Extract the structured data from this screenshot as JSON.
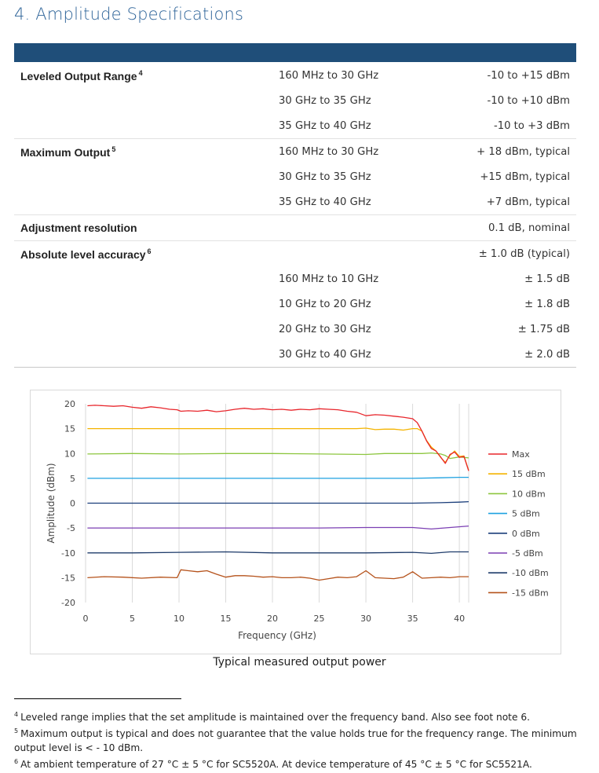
{
  "section": {
    "title": "4. Amplitude Specifications"
  },
  "specs": {
    "leveled": {
      "name": "Leveled Output Range",
      "note": "4",
      "rows": [
        {
          "range": "160 MHz to 30 GHz",
          "value": "-10 to +15 dBm"
        },
        {
          "range": "30 GHz to 35 GHz",
          "value": "-10 to +10 dBm"
        },
        {
          "range": "35 GHz to 40 GHz",
          "value": "-10 to +3 dBm"
        }
      ]
    },
    "maxout": {
      "name": "Maximum Output",
      "note": "5",
      "rows": [
        {
          "range": "160 MHz to 30 GHz",
          "value": "+ 18 dBm, typical"
        },
        {
          "range": "30 GHz to 35 GHz",
          "value": "+15 dBm, typical"
        },
        {
          "range": "35 GHz to 40 GHz",
          "value": "+7 dBm, typical"
        }
      ]
    },
    "adjust": {
      "name": "Adjustment resolution",
      "value": "0.1 dB, nominal"
    },
    "accuracy": {
      "name": "Absolute level accuracy",
      "note": "6",
      "value": "± 1.0 dB (typical)",
      "rows": [
        {
          "range": "160 MHz to 10 GHz",
          "value": "± 1.5 dB"
        },
        {
          "range": "10 GHz to 20 GHz",
          "value": "± 1.8 dB"
        },
        {
          "range": "20 GHz to 30 GHz",
          "value": "± 1.75 dB"
        },
        {
          "range": "30 GHz to 40 GHz",
          "value": "± 2.0 dB"
        }
      ]
    }
  },
  "chart_data": {
    "type": "line",
    "title": "",
    "xlabel": "Frequency (GHz)",
    "ylabel": "Amplitude (dBm)",
    "xlim": [
      0,
      41
    ],
    "ylim": [
      -20,
      20
    ],
    "xticks": [
      0,
      5,
      10,
      15,
      20,
      25,
      30,
      35,
      40
    ],
    "yticks": [
      20,
      15,
      10,
      5,
      0,
      -5,
      -10,
      -15,
      -20
    ],
    "grid": "vertical",
    "legend": "right",
    "series": [
      {
        "name": "Max",
        "color": "#e8262c",
        "x": [
          0.2,
          1,
          2,
          3,
          4,
          5,
          6,
          7,
          8,
          9,
          9.8,
          10.2,
          11,
          12,
          13,
          14,
          15,
          16,
          17,
          18,
          19,
          20,
          21,
          22,
          23,
          24,
          25,
          26,
          27,
          28,
          29,
          30,
          31,
          32,
          33,
          34,
          35,
          35.5,
          36,
          36.5,
          37,
          37.5,
          38,
          38.5,
          39,
          39.5,
          40,
          40.5,
          41
        ],
        "y": [
          19.6,
          19.7,
          19.6,
          19.5,
          19.6,
          19.3,
          19.1,
          19.4,
          19.2,
          18.9,
          18.8,
          18.5,
          18.6,
          18.5,
          18.7,
          18.4,
          18.6,
          18.9,
          19.1,
          18.9,
          19.0,
          18.8,
          18.9,
          18.7,
          18.9,
          18.8,
          19.0,
          18.9,
          18.8,
          18.5,
          18.3,
          17.6,
          17.8,
          17.7,
          17.5,
          17.3,
          17.0,
          16.2,
          14.5,
          12.5,
          11.0,
          10.5,
          9.3,
          8.0,
          9.8,
          10.3,
          9.2,
          9.4,
          6.5
        ]
      },
      {
        "name": "15 dBm",
        "color": "#f4b400",
        "x": [
          0.2,
          5,
          10,
          15,
          20,
          25,
          29,
          30,
          31,
          32,
          33,
          34,
          35,
          35.5,
          36,
          36.5,
          37,
          37.5,
          38,
          38.5,
          39,
          39.5,
          40,
          40.5,
          41
        ],
        "y": [
          15.0,
          15.0,
          15.0,
          15.0,
          15.0,
          15.0,
          15.0,
          15.1,
          14.8,
          14.9,
          14.9,
          14.7,
          15.0,
          15.0,
          14.5,
          12.6,
          11.3,
          10.5,
          9.2,
          8.2,
          9.6,
          10.5,
          9.4,
          9.5,
          6.6
        ]
      },
      {
        "name": "10 dBm",
        "color": "#8dc63f",
        "x": [
          0.2,
          5,
          10,
          15,
          20,
          25,
          30,
          32,
          34,
          36,
          37,
          38,
          38.5,
          39,
          40,
          41
        ],
        "y": [
          9.9,
          10.0,
          9.9,
          10.0,
          10.0,
          9.9,
          9.8,
          10.0,
          10.0,
          10.0,
          10.1,
          9.9,
          9.6,
          9.0,
          9.3,
          9.1
        ]
      },
      {
        "name": "5 dBm",
        "color": "#1ea1e0",
        "x": [
          0.2,
          5,
          10,
          15,
          20,
          25,
          30,
          35,
          38,
          40,
          41
        ],
        "y": [
          5.0,
          5.0,
          5.0,
          5.0,
          5.0,
          5.0,
          5.0,
          5.0,
          5.1,
          5.2,
          5.2
        ]
      },
      {
        "name": "0 dBm",
        "color": "#1a3e7a",
        "x": [
          0.2,
          5,
          10,
          15,
          20,
          25,
          30,
          35,
          38,
          40,
          41
        ],
        "y": [
          0.0,
          0.0,
          0.0,
          0.0,
          0.0,
          0.0,
          0.0,
          0.0,
          0.1,
          0.2,
          0.3
        ]
      },
      {
        "name": "-5 dBm",
        "color": "#7b3fb3",
        "x": [
          0.2,
          5,
          10,
          15,
          20,
          25,
          30,
          35,
          37,
          39,
          41
        ],
        "y": [
          -5.0,
          -5.0,
          -5.0,
          -5.0,
          -5.0,
          -5.0,
          -4.9,
          -4.9,
          -5.2,
          -4.9,
          -4.6
        ]
      },
      {
        "name": "-10 dBm",
        "color": "#1f3c6b",
        "x": [
          0.2,
          5,
          10,
          15,
          20,
          25,
          30,
          35,
          37,
          39,
          41
        ],
        "y": [
          -10.0,
          -10.0,
          -9.9,
          -9.8,
          -10.0,
          -10.0,
          -10.0,
          -9.9,
          -10.1,
          -9.8,
          -9.8
        ]
      },
      {
        "name": "-15 dBm",
        "color": "#b5521b",
        "x": [
          0.2,
          2,
          4,
          6,
          8,
          9.8,
          10.2,
          11,
          12,
          13,
          14,
          15,
          16,
          17,
          18,
          19,
          20,
          21,
          22,
          23,
          24,
          25,
          26,
          27,
          28,
          29,
          30,
          31,
          32,
          33,
          34,
          35,
          36,
          37,
          38,
          39,
          40,
          41
        ],
        "y": [
          -15.0,
          -14.8,
          -14.9,
          -15.1,
          -14.9,
          -15.0,
          -13.4,
          -13.6,
          -13.8,
          -13.6,
          -14.3,
          -14.9,
          -14.6,
          -14.6,
          -14.7,
          -14.9,
          -14.8,
          -15.0,
          -15.0,
          -14.9,
          -15.1,
          -15.5,
          -15.2,
          -14.9,
          -15.0,
          -14.8,
          -13.6,
          -15.0,
          -15.1,
          -15.2,
          -14.9,
          -13.8,
          -15.1,
          -15.0,
          -14.9,
          -15.0,
          -14.8,
          -14.8
        ]
      }
    ]
  },
  "caption": "Typical measured output power",
  "footnotes": [
    {
      "mark": "4",
      "text": "Leveled range implies that the set amplitude is maintained over the frequency band. Also see foot note 6."
    },
    {
      "mark": "5",
      "text": "Maximum output is typical and does not guarantee that the value holds true for the frequency range. The minimum output level is < - 10 dBm."
    },
    {
      "mark": "6",
      "text": "At ambient temperature of 27 °C ± 5 °C for SC5520A. At device temperature of 45 °C ± 5 °C for SC5521A."
    }
  ]
}
